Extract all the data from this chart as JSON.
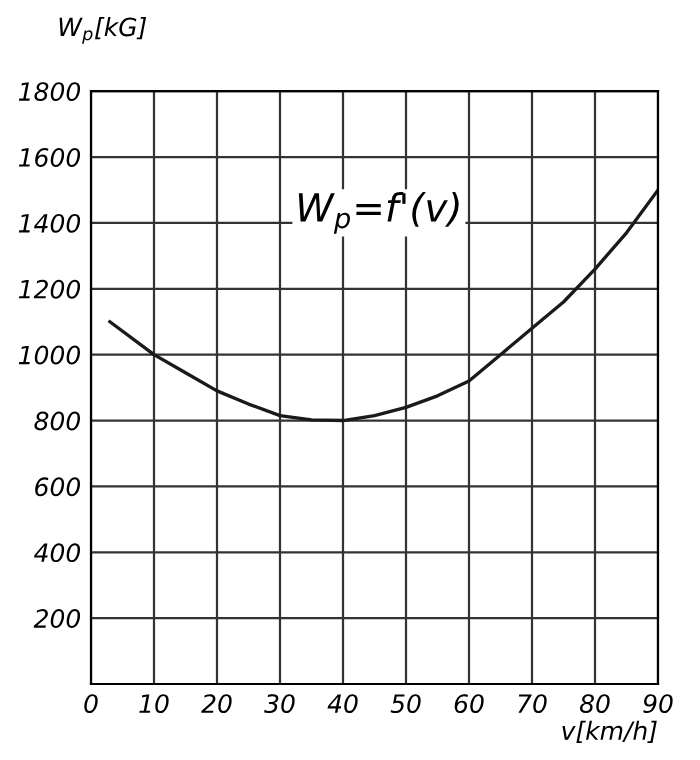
{
  "chart_data": {
    "type": "line",
    "xlabel": "v[km/h]",
    "ylabel": "W$_{p}$[kG]",
    "annotations": [
      "W$_{p}$=f'(v)"
    ],
    "x": [
      3,
      10,
      15,
      20,
      25,
      30,
      35,
      40,
      45,
      50,
      55,
      60,
      65,
      70,
      75,
      80,
      85,
      90
    ],
    "series": [
      {
        "color": "#1a1a1a",
        "values": [
          1100,
          1000,
          945,
          890,
          850,
          815,
          802,
          800,
          815,
          840,
          875,
          920,
          1000,
          1080,
          1160,
          1260,
          1370,
          1500
        ]
      }
    ],
    "xlim": [
      0,
      90
    ],
    "ylim": [
      0,
      1800
    ],
    "xticks": [
      0,
      10,
      20,
      30,
      40,
      50,
      60,
      70,
      80,
      90
    ],
    "yticks": [
      200,
      400,
      600,
      800,
      1000,
      1200,
      1400,
      1600,
      1800
    ],
    "grid": true,
    "marker": "none",
    "line_style": "solid"
  }
}
